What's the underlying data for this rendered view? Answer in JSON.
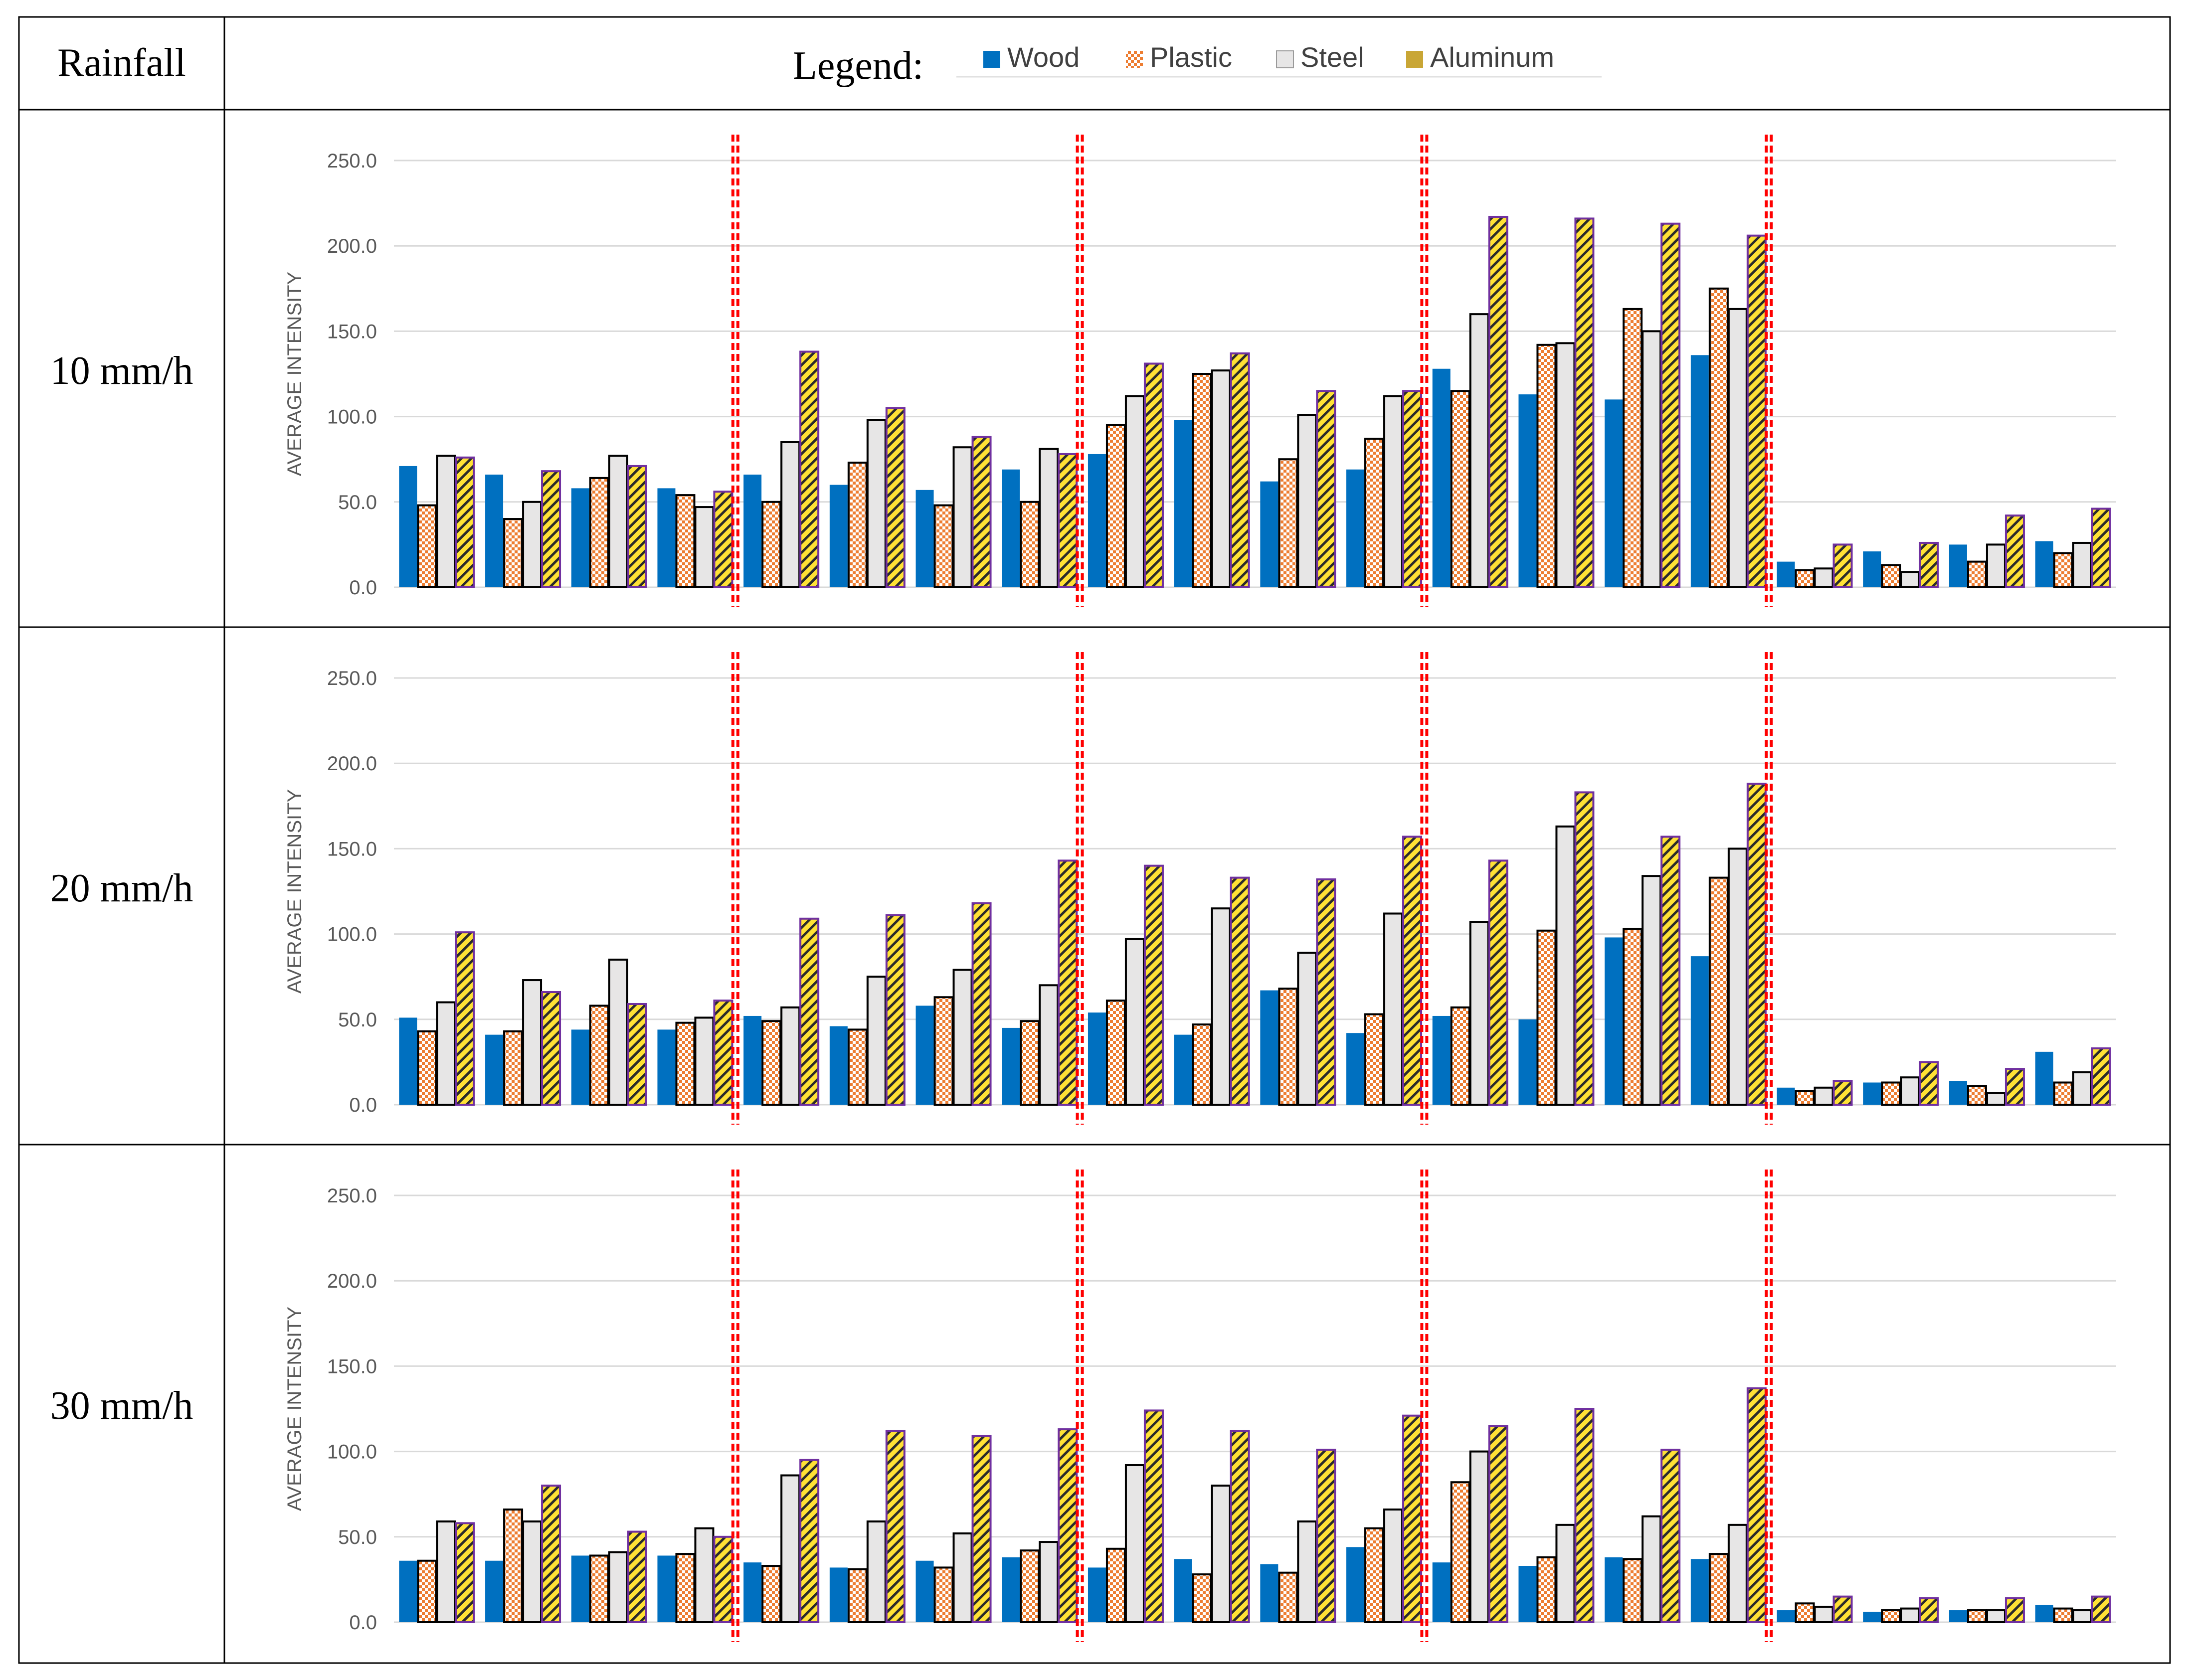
{
  "table": {
    "header_left": "Rainfall",
    "header_right": "Legend:"
  },
  "legend": [
    {
      "name": "Wood",
      "icon": "solid-blue-swatch-icon"
    },
    {
      "name": "Plastic",
      "icon": "checker-orange-swatch-icon"
    },
    {
      "name": "Steel",
      "icon": "light-gray-swatch-icon"
    },
    {
      "name": "Aluminum",
      "icon": "yellow-hatched-swatch-icon"
    }
  ],
  "colors": {
    "wood": "#0070c0",
    "plastic": "#ed7d31",
    "steel": "#e7e6e6",
    "aluminum": "#ffe135",
    "aluminum_outline": "#7030a0",
    "separator": "#ff0000",
    "grid": "#d9d9d9",
    "tick_text": "#595959"
  },
  "chart_data": [
    {
      "type": "bar",
      "rainfall": "10 mm/h",
      "ylabel": "AVERAGE INTENSITY",
      "ylim": [
        0,
        250
      ],
      "yticks": [
        "0.0",
        "50.0",
        "100.0",
        "150.0",
        "200.0",
        "250.0"
      ],
      "group_separators_after": [
        4,
        8,
        12,
        16
      ],
      "series": [
        {
          "name": "Wood",
          "values": [
            71,
            66,
            58,
            58,
            66,
            60,
            57,
            69,
            78,
            98,
            62,
            69,
            128,
            113,
            110,
            136,
            15,
            21,
            25,
            27
          ]
        },
        {
          "name": "Plastic",
          "values": [
            48,
            40,
            64,
            54,
            50,
            73,
            48,
            50,
            95,
            125,
            75,
            87,
            115,
            142,
            163,
            175,
            10,
            13,
            15,
            20
          ]
        },
        {
          "name": "Steel",
          "values": [
            77,
            50,
            77,
            47,
            85,
            98,
            82,
            81,
            112,
            127,
            101,
            112,
            160,
            143,
            150,
            163,
            11,
            9,
            25,
            26
          ]
        },
        {
          "name": "Aluminum",
          "values": [
            76,
            68,
            71,
            56,
            138,
            105,
            88,
            78,
            131,
            137,
            115,
            115,
            217,
            216,
            213,
            206,
            25,
            26,
            42,
            46
          ]
        }
      ]
    },
    {
      "type": "bar",
      "rainfall": "20 mm/h",
      "ylabel": "AVERAGE INTENSITY",
      "ylim": [
        0,
        250
      ],
      "yticks": [
        "0.0",
        "50.0",
        "100.0",
        "150.0",
        "200.0",
        "250.0"
      ],
      "group_separators_after": [
        4,
        8,
        12,
        16
      ],
      "series": [
        {
          "name": "Wood",
          "values": [
            51,
            41,
            44,
            44,
            52,
            46,
            58,
            45,
            54,
            41,
            67,
            42,
            52,
            50,
            98,
            87,
            10,
            13,
            14,
            31
          ]
        },
        {
          "name": "Plastic",
          "values": [
            43,
            43,
            58,
            48,
            49,
            44,
            63,
            49,
            61,
            47,
            68,
            53,
            57,
            102,
            103,
            133,
            8,
            13,
            11,
            13
          ]
        },
        {
          "name": "Steel",
          "values": [
            60,
            73,
            85,
            51,
            57,
            75,
            79,
            70,
            97,
            115,
            89,
            112,
            107,
            163,
            134,
            150,
            10,
            16,
            7,
            19
          ]
        },
        {
          "name": "Aluminum",
          "values": [
            101,
            66,
            59,
            61,
            109,
            111,
            118,
            143,
            140,
            133,
            132,
            157,
            143,
            183,
            157,
            188,
            14,
            25,
            21,
            33
          ]
        }
      ]
    },
    {
      "type": "bar",
      "rainfall": "30 mm/h",
      "ylabel": "AVERAGE INTENSITY",
      "ylim": [
        0,
        250
      ],
      "yticks": [
        "0.0",
        "50.0",
        "100.0",
        "150.0",
        "200.0",
        "250.0"
      ],
      "group_separators_after": [
        4,
        8,
        12,
        16
      ],
      "series": [
        {
          "name": "Wood",
          "values": [
            36,
            36,
            39,
            39,
            35,
            32,
            36,
            38,
            32,
            37,
            34,
            44,
            35,
            33,
            38,
            37,
            7,
            6,
            7,
            10
          ]
        },
        {
          "name": "Plastic",
          "values": [
            36,
            66,
            39,
            40,
            33,
            31,
            32,
            42,
            43,
            28,
            29,
            55,
            82,
            38,
            37,
            40,
            11,
            7,
            7,
            8
          ]
        },
        {
          "name": "Steel",
          "values": [
            59,
            59,
            41,
            55,
            86,
            59,
            52,
            47,
            92,
            80,
            59,
            66,
            100,
            57,
            62,
            57,
            9,
            8,
            7,
            7
          ]
        },
        {
          "name": "Aluminum",
          "values": [
            58,
            80,
            53,
            50,
            95,
            112,
            109,
            113,
            124,
            112,
            101,
            121,
            115,
            125,
            101,
            137,
            15,
            14,
            14,
            15
          ]
        }
      ]
    }
  ]
}
